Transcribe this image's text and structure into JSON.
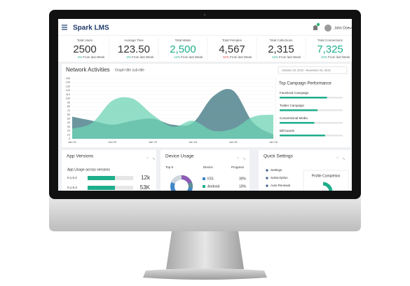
{
  "header": {
    "logo": "Spark LMS",
    "user": "John Doe"
  },
  "stats": [
    {
      "label": "Total Users",
      "value": "2500",
      "change": "4%",
      "note": "From last Week",
      "trend": "up",
      "color": "#333333"
    },
    {
      "label": "Avarage Time",
      "value": "123.50",
      "change": "3%",
      "note": "From last Week",
      "trend": "up",
      "color": "#333333"
    },
    {
      "label": "Total Males",
      "value": "2,500",
      "change": "12%",
      "note": "From last Week",
      "trend": "up",
      "color": "#1fae8c"
    },
    {
      "label": "Total Females",
      "value": "4,567",
      "change": "32%",
      "note": "From last Week",
      "trend": "down",
      "color": "#333333"
    },
    {
      "label": "Total Collections",
      "value": "2,315",
      "change": "12%",
      "note": "From last Week",
      "trend": "up",
      "color": "#333333"
    },
    {
      "label": "Total Connections",
      "value": "7,325",
      "change": "34%",
      "note": "From last Week",
      "trend": "up",
      "color": "#1fae8c"
    }
  ],
  "network": {
    "title": "Network Activities",
    "subtitle": "Graph title sub-title",
    "date_range": "October 20, 2015 - November 03, 2015"
  },
  "chart_data": {
    "type": "area",
    "categories": [
      "Jan 01",
      null,
      "Jan 02",
      null,
      "Jan 03",
      null,
      "Jan 04",
      null,
      "Jan 05",
      null,
      "Jan 06"
    ],
    "series": [
      {
        "color": "#5b8b95",
        "values": [
          55,
          45,
          35,
          45,
          50,
          35,
          40,
          105,
          120,
          40,
          10
        ]
      },
      {
        "color": "#6dd3b4",
        "values": [
          25,
          40,
          95,
          100,
          60,
          30,
          45,
          20,
          25,
          55,
          60
        ]
      }
    ],
    "ylim": [
      0,
      150
    ],
    "yticks": [
      0,
      10,
      20,
      30,
      40,
      50,
      60,
      70,
      80,
      90,
      100,
      110,
      120,
      130,
      140,
      150
    ],
    "grid": true
  },
  "campaigns": {
    "title": "Top Campaign Performance",
    "items": [
      {
        "name": "Facebook Campaign",
        "progress": 75
      },
      {
        "name": "Twitter Campaign",
        "progress": 60
      },
      {
        "name": "Conventional Media",
        "progress": 55
      },
      {
        "name": "Bill boards",
        "progress": 72
      }
    ]
  },
  "app_versions": {
    "title": "App Versions",
    "subtitle": "App Usage across versions",
    "rows": [
      {
        "version": "0.1.5.2",
        "value": "12k",
        "progress": 60
      },
      {
        "version": "0.1.5.3",
        "value": "53K",
        "progress": 60
      }
    ]
  },
  "device_usage": {
    "title": "Device Usage",
    "columns": [
      "Top 5",
      "Device",
      "Progress"
    ],
    "rows": [
      {
        "device": "IOS",
        "value": "30%"
      },
      {
        "device": "Android",
        "value": "10%"
      }
    ]
  },
  "quick_settings": {
    "title": "Quick Settings",
    "items": [
      "Settings",
      "Subscription",
      "Auto Renewal"
    ],
    "profile": "Profile Completion"
  }
}
